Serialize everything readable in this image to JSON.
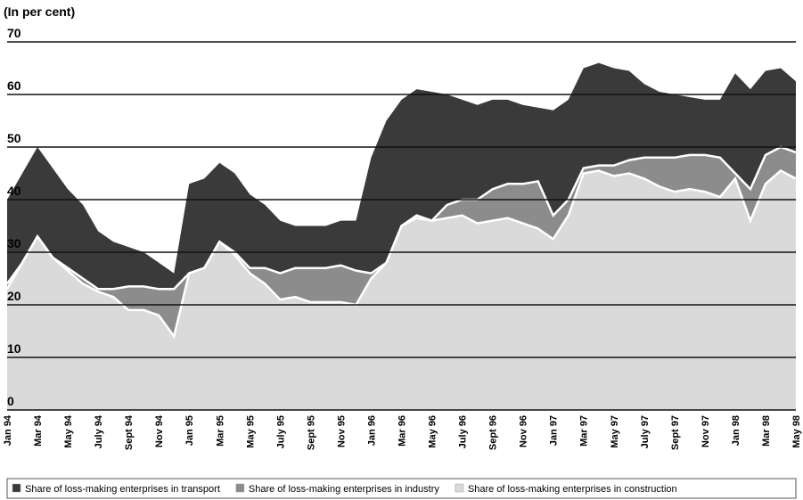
{
  "chart_data": {
    "type": "area",
    "ylabel": "(In per cent)",
    "categories": [
      "Jan 94",
      null,
      "Mar 94",
      null,
      "May 94",
      null,
      "July 94",
      null,
      "Sept 94",
      null,
      "Nov 94",
      null,
      "Jan 95",
      null,
      "Mar 95",
      null,
      "May 95",
      null,
      "July 95",
      null,
      "Sept 95",
      null,
      "Nov 95",
      null,
      "Jan 96",
      null,
      "Mar 96",
      null,
      "May 96",
      null,
      "July 96",
      null,
      "Sept 96",
      null,
      "Nov 96",
      null,
      "Jan 97",
      null,
      "Mar 97",
      null,
      "May 97",
      null,
      "July 97",
      null,
      "Sept 97",
      null,
      "Nov 97",
      null,
      "Jan 98",
      null,
      "Mar 98",
      null,
      "May 98"
    ],
    "series": [
      {
        "name": "Share of loss-making enterprises in transport",
        "color": "#3a3a3a",
        "values": [
          40,
          45,
          50,
          46,
          42,
          39,
          34,
          32,
          31,
          30,
          28,
          26,
          43,
          44,
          47,
          45,
          41,
          39,
          36,
          35,
          35,
          35,
          36,
          36,
          48,
          55,
          59,
          61,
          60.5,
          60,
          59,
          58,
          59,
          59,
          58,
          57.5,
          57,
          59,
          65,
          66,
          65,
          64.5,
          62,
          60.5,
          60,
          59.5,
          59,
          59,
          64,
          61,
          64.5,
          65,
          62.5
        ]
      },
      {
        "name": "Share of loss-making enterprises in industry",
        "color": "#8c8c8c",
        "values": [
          24,
          28,
          33,
          29,
          27,
          25,
          23,
          23,
          23.5,
          23.5,
          23,
          23,
          26,
          27,
          32,
          30,
          27,
          27,
          26,
          27,
          27,
          27,
          27.5,
          26.5,
          26,
          28,
          35,
          37,
          36,
          39,
          40,
          40,
          42,
          43,
          43,
          43.5,
          37,
          40,
          46,
          46.5,
          46.5,
          47.5,
          48,
          48,
          48,
          48.5,
          48.5,
          48,
          45,
          42,
          48.5,
          50,
          49
        ]
      },
      {
        "name": "Share of loss-making enterprises in construction",
        "color": "#dadada",
        "values": [
          23,
          28,
          33,
          29,
          26.5,
          24,
          22.5,
          21.5,
          19,
          19,
          18,
          14,
          26,
          27,
          32,
          29.5,
          26,
          24,
          21,
          21.5,
          20.5,
          20.5,
          20.5,
          20,
          25,
          28,
          35,
          36.5,
          36,
          36.5,
          37,
          35.5,
          36,
          36.5,
          35.5,
          34.5,
          32.5,
          37,
          45,
          45.5,
          44.5,
          45,
          44,
          42.5,
          41.5,
          42,
          41.5,
          40.5,
          44,
          36,
          43,
          45.5,
          44
        ]
      }
    ],
    "ylim": [
      0,
      70
    ],
    "yticks": [
      0,
      10,
      20,
      30,
      40,
      50,
      60,
      70
    ],
    "grid": true,
    "legend": "bottom"
  }
}
